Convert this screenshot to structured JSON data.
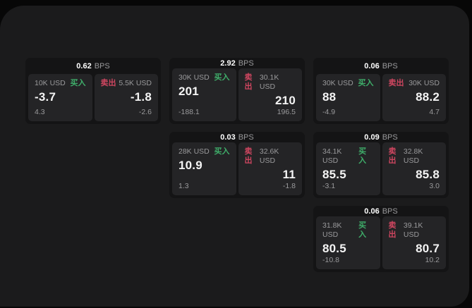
{
  "theme": {
    "bg_outer": "#070707",
    "bg_panel": "#1b1b1c",
    "bg_card": "#141415",
    "bg_cell": "#242426",
    "text_primary": "#f4f4f4",
    "text_secondary": "#9a9a9c",
    "buy_color": "#3fae6a",
    "sell_color": "#cf4660"
  },
  "labels": {
    "bps_unit": "BPS",
    "buy": "买入",
    "sell": "卖出"
  },
  "cards": [
    {
      "row": 1,
      "col": 1,
      "bps": "0.62",
      "buy": {
        "amount": "10K USD",
        "value": "-3.7",
        "sub": "4.3"
      },
      "sell": {
        "amount": "5.5K USD",
        "value": "-1.8",
        "sub": "-2.6"
      }
    },
    {
      "row": 1,
      "col": 2,
      "bps": "2.92",
      "buy": {
        "amount": "30K USD",
        "value": "201",
        "sub": "-188.1"
      },
      "sell": {
        "amount": "30.1K USD",
        "value": "210",
        "sub": "196.5"
      }
    },
    {
      "row": 1,
      "col": 3,
      "bps": "0.06",
      "buy": {
        "amount": "30K USD",
        "value": "88",
        "sub": "-4.9"
      },
      "sell": {
        "amount": "30K USD",
        "value": "88.2",
        "sub": "4.7"
      }
    },
    {
      "row": 2,
      "col": 2,
      "bps": "0.03",
      "buy": {
        "amount": "28K USD",
        "value": "10.9",
        "sub": "1.3"
      },
      "sell": {
        "amount": "32.6K USD",
        "value": "11",
        "sub": "-1.8"
      }
    },
    {
      "row": 2,
      "col": 3,
      "bps": "0.09",
      "buy": {
        "amount": "34.1K USD",
        "value": "85.5",
        "sub": "-3.1"
      },
      "sell": {
        "amount": "32.8K USD",
        "value": "85.8",
        "sub": "3.0"
      }
    },
    {
      "row": 3,
      "col": 3,
      "bps": "0.06",
      "buy": {
        "amount": "31.8K USD",
        "value": "80.5",
        "sub": "-10.8"
      },
      "sell": {
        "amount": "39.1K USD",
        "value": "80.7",
        "sub": "10.2"
      }
    }
  ]
}
